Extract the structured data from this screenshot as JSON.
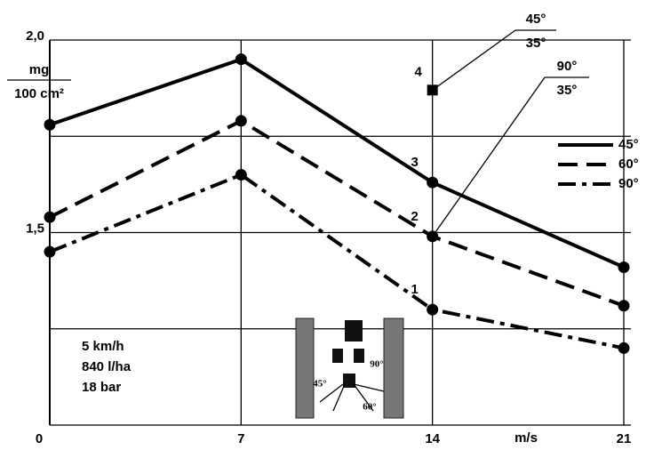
{
  "chart_data": {
    "type": "line",
    "y_label_top": "mg",
    "y_label_bottom": "100 cm²",
    "x_unit": "m/s",
    "x": [
      0,
      7,
      14,
      21
    ],
    "xlim": [
      0,
      21
    ],
    "xticks": [
      0,
      7,
      14,
      21
    ],
    "ylim": [
      1.0,
      2.0
    ],
    "yticks": [
      {
        "value": 2.0,
        "label": "2,0"
      },
      {
        "value": 1.5,
        "label": "1,5"
      }
    ],
    "grid_lines": [
      1.0,
      1.25,
      1.5,
      1.75,
      2.0
    ],
    "grid": true,
    "legend": "right",
    "series": [
      {
        "name": "45°",
        "color": "#000000",
        "dash": "solid",
        "label": "3",
        "values": [
          1.78,
          1.95,
          1.63,
          1.41
        ]
      },
      {
        "name": "60°",
        "color": "#000000",
        "dash": "dash",
        "label": "2",
        "values": [
          1.54,
          1.79,
          1.49,
          1.31
        ]
      },
      {
        "name": "90°",
        "color": "#000000",
        "dash": "dashdot",
        "label": "1",
        "values": [
          1.45,
          1.65,
          1.3,
          1.2
        ]
      }
    ],
    "points": [
      {
        "label": "4",
        "x": 14,
        "y": 1.87,
        "marker": "square"
      }
    ],
    "angle_notes": [
      {
        "numerator": "45°",
        "denominator": "35°"
      },
      {
        "numerator": "90°",
        "denominator": "35°"
      }
    ],
    "conditions": [
      "5 km/h",
      "840 l/ha",
      "18 bar"
    ],
    "illustration_labels": [
      "90°",
      "45°",
      "60°"
    ]
  }
}
